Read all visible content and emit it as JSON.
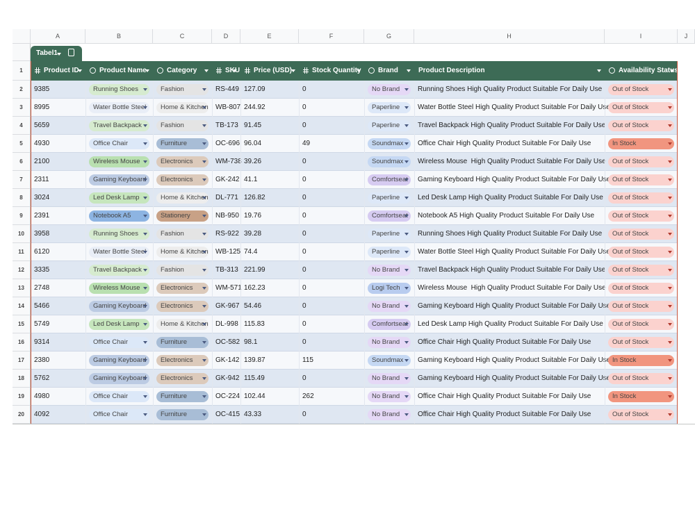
{
  "sheet": {
    "column_letters": [
      "A",
      "B",
      "C",
      "D",
      "E",
      "F",
      "G",
      "H",
      "I",
      "J"
    ],
    "row_numbers": [
      1,
      2,
      3,
      4,
      5,
      6,
      7,
      8,
      9,
      10,
      11,
      12,
      13,
      14,
      15,
      16,
      17,
      18,
      19,
      20
    ],
    "table_name": "Tabel1",
    "headers": [
      "Product ID",
      "Product Name",
      "Category",
      "SKU",
      "Price (USD)",
      "Stock Quantity",
      "Brand",
      "Product Description",
      "Availability Status"
    ],
    "rows": [
      [
        9385,
        "Running Shoes",
        "Fashion",
        "RS-449",
        127.09,
        0,
        "No Brand",
        "Running Shoes High Quality Product Suitable For Daily Use",
        "Out of Stock"
      ],
      [
        8995,
        "Water Bottle Steel",
        "Home & Kitchen",
        "WB-807",
        244.92,
        0,
        "Paperline",
        "Water Bottle Steel High Quality Product Suitable For Daily Use",
        "Out of Stock"
      ],
      [
        5659,
        "Travel Backpack",
        "Fashion",
        "TB-173",
        91.45,
        0,
        "Paperline",
        "Travel Backpack High Quality Product Suitable For Daily Use",
        "Out of Stock"
      ],
      [
        4930,
        "Office Chair",
        "Furniture",
        "OC-696",
        96.04,
        49,
        "Soundmax",
        "Office Chair High Quality Product Suitable For Daily Use",
        "In Stock"
      ],
      [
        2100,
        "Wireless Mouse",
        "Electronics",
        "WM-738",
        39.26,
        0,
        "Soundmax",
        "Wireless Mouse  High Quality Product Suitable For Daily Use",
        "Out of Stock"
      ],
      [
        2311,
        "Gaming Keyboard",
        "Electronics",
        "GK-242",
        41.1,
        0,
        "Comfortseat",
        "Gaming Keyboard High Quality Product Suitable For Daily Use",
        "Out of Stock"
      ],
      [
        3024,
        "Led Desk Lamp",
        "Home & Kitchen",
        "DL-771",
        126.82,
        0,
        "Paperline",
        "Led Desk Lamp High Quality Product Suitable For Daily Use",
        "Out of Stock"
      ],
      [
        2391,
        "Notebook A5",
        "Stationery",
        "NB-950",
        19.76,
        0,
        "Comfortseat",
        "Notebook A5 High Quality Product Suitable For Daily Use",
        "Out of Stock"
      ],
      [
        3958,
        "Running Shoes",
        "Fashion",
        "RS-922",
        39.28,
        0,
        "Paperline",
        "Running Shoes High Quality Product Suitable For Daily Use",
        "Out of Stock"
      ],
      [
        6120,
        "Water Bottle Steel",
        "Home & Kitchen",
        "WB-125",
        74.4,
        0,
        "Paperline",
        "Water Bottle Steel High Quality Product Suitable For Daily Use",
        "Out of Stock"
      ],
      [
        3335,
        "Travel Backpack",
        "Fashion",
        "TB-313",
        221.99,
        0,
        "No Brand",
        "Travel Backpack High Quality Product Suitable For Daily Use",
        "Out of Stock"
      ],
      [
        2748,
        "Wireless Mouse",
        "Electronics",
        "WM-571",
        162.23,
        0,
        "Logi Tech",
        "Wireless Mouse  High Quality Product Suitable For Daily Use",
        "Out of Stock"
      ],
      [
        5466,
        "Gaming Keyboard",
        "Electronics",
        "GK-967",
        54.46,
        0,
        "No Brand",
        "Gaming Keyboard High Quality Product Suitable For Daily Use",
        "Out of Stock"
      ],
      [
        5749,
        "Led Desk Lamp",
        "Home & Kitchen",
        "DL-998",
        115.83,
        0,
        "Comfortseat",
        "Led Desk Lamp High Quality Product Suitable For Daily Use",
        "Out of Stock"
      ],
      [
        9314,
        "Office Chair",
        "Furniture",
        "OC-582",
        98.1,
        0,
        "No Brand",
        "Office Chair High Quality Product Suitable For Daily Use",
        "Out of Stock"
      ],
      [
        2380,
        "Gaming Keyboard",
        "Electronics",
        "GK-142",
        139.87,
        115,
        "Soundmax",
        "Gaming Keyboard High Quality Product Suitable For Daily Use",
        "In Stock"
      ],
      [
        5762,
        "Gaming Keyboard",
        "Electronics",
        "GK-942",
        115.49,
        0,
        "No Brand",
        "Gaming Keyboard High Quality Product Suitable For Daily Use",
        "Out of Stock"
      ],
      [
        4980,
        "Office Chair",
        "Furniture",
        "OC-224",
        102.44,
        262,
        "No Brand",
        "Office Chair High Quality Product Suitable For Daily Use",
        "In Stock"
      ],
      [
        4092,
        "Office Chair",
        "Furniture",
        "OC-415",
        43.33,
        0,
        "No Brand",
        "Office Chair High Quality Product Suitable For Daily Use",
        "Out of Stock"
      ]
    ],
    "chip_colors": [
      [
        "#d6ebcf",
        "#e4e4e4",
        "#e5d8f6",
        "#fbd2ce"
      ],
      [
        "#e9eef7",
        "#ededed",
        "#dde8f8",
        "#fbd2ce"
      ],
      [
        "#d6ebcf",
        "#e4e4e4",
        "#dde8f8",
        "#fbd2ce"
      ],
      [
        "#dce8f8",
        "#a8bdd6",
        "#c5d8f3",
        "#f1957f"
      ],
      [
        "#b9e0b0",
        "#dccabb",
        "#c5d8f3",
        "#fbd2ce"
      ],
      [
        "#bccbe3",
        "#dccabb",
        "#d6cbf1",
        "#fbd2ce"
      ],
      [
        "#c6e6bd",
        "#ededed",
        "#dde8f8",
        "#fbd2ce"
      ],
      [
        "#8db4e2",
        "#c8a186",
        "#d6cbf1",
        "#fbd2ce"
      ],
      [
        "#d6ebcf",
        "#e4e4e4",
        "#dde8f8",
        "#fbd2ce"
      ],
      [
        "#e9eef7",
        "#ededed",
        "#dde8f8",
        "#fbd2ce"
      ],
      [
        "#d6ebcf",
        "#e4e4e4",
        "#e5d8f6",
        "#fbd2ce"
      ],
      [
        "#b9e0b0",
        "#dccabb",
        "#b8ccef",
        "#fbd2ce"
      ],
      [
        "#bccbe3",
        "#dccabb",
        "#e5d8f6",
        "#fbd2ce"
      ],
      [
        "#c6e6bd",
        "#ededed",
        "#d6cbf1",
        "#fbd2ce"
      ],
      [
        "#dce8f8",
        "#a8bdd6",
        "#e5d8f6",
        "#fbd2ce"
      ],
      [
        "#bccbe3",
        "#dccabb",
        "#c5d8f3",
        "#f1957f"
      ],
      [
        "#bccbe3",
        "#dccabb",
        "#e5d8f6",
        "#fbd2ce"
      ],
      [
        "#dce8f8",
        "#a8bdd6",
        "#e5d8f6",
        "#f1957f"
      ],
      [
        "#dce8f8",
        "#a8bdd6",
        "#e5d8f6",
        "#fbd2ce"
      ]
    ]
  }
}
